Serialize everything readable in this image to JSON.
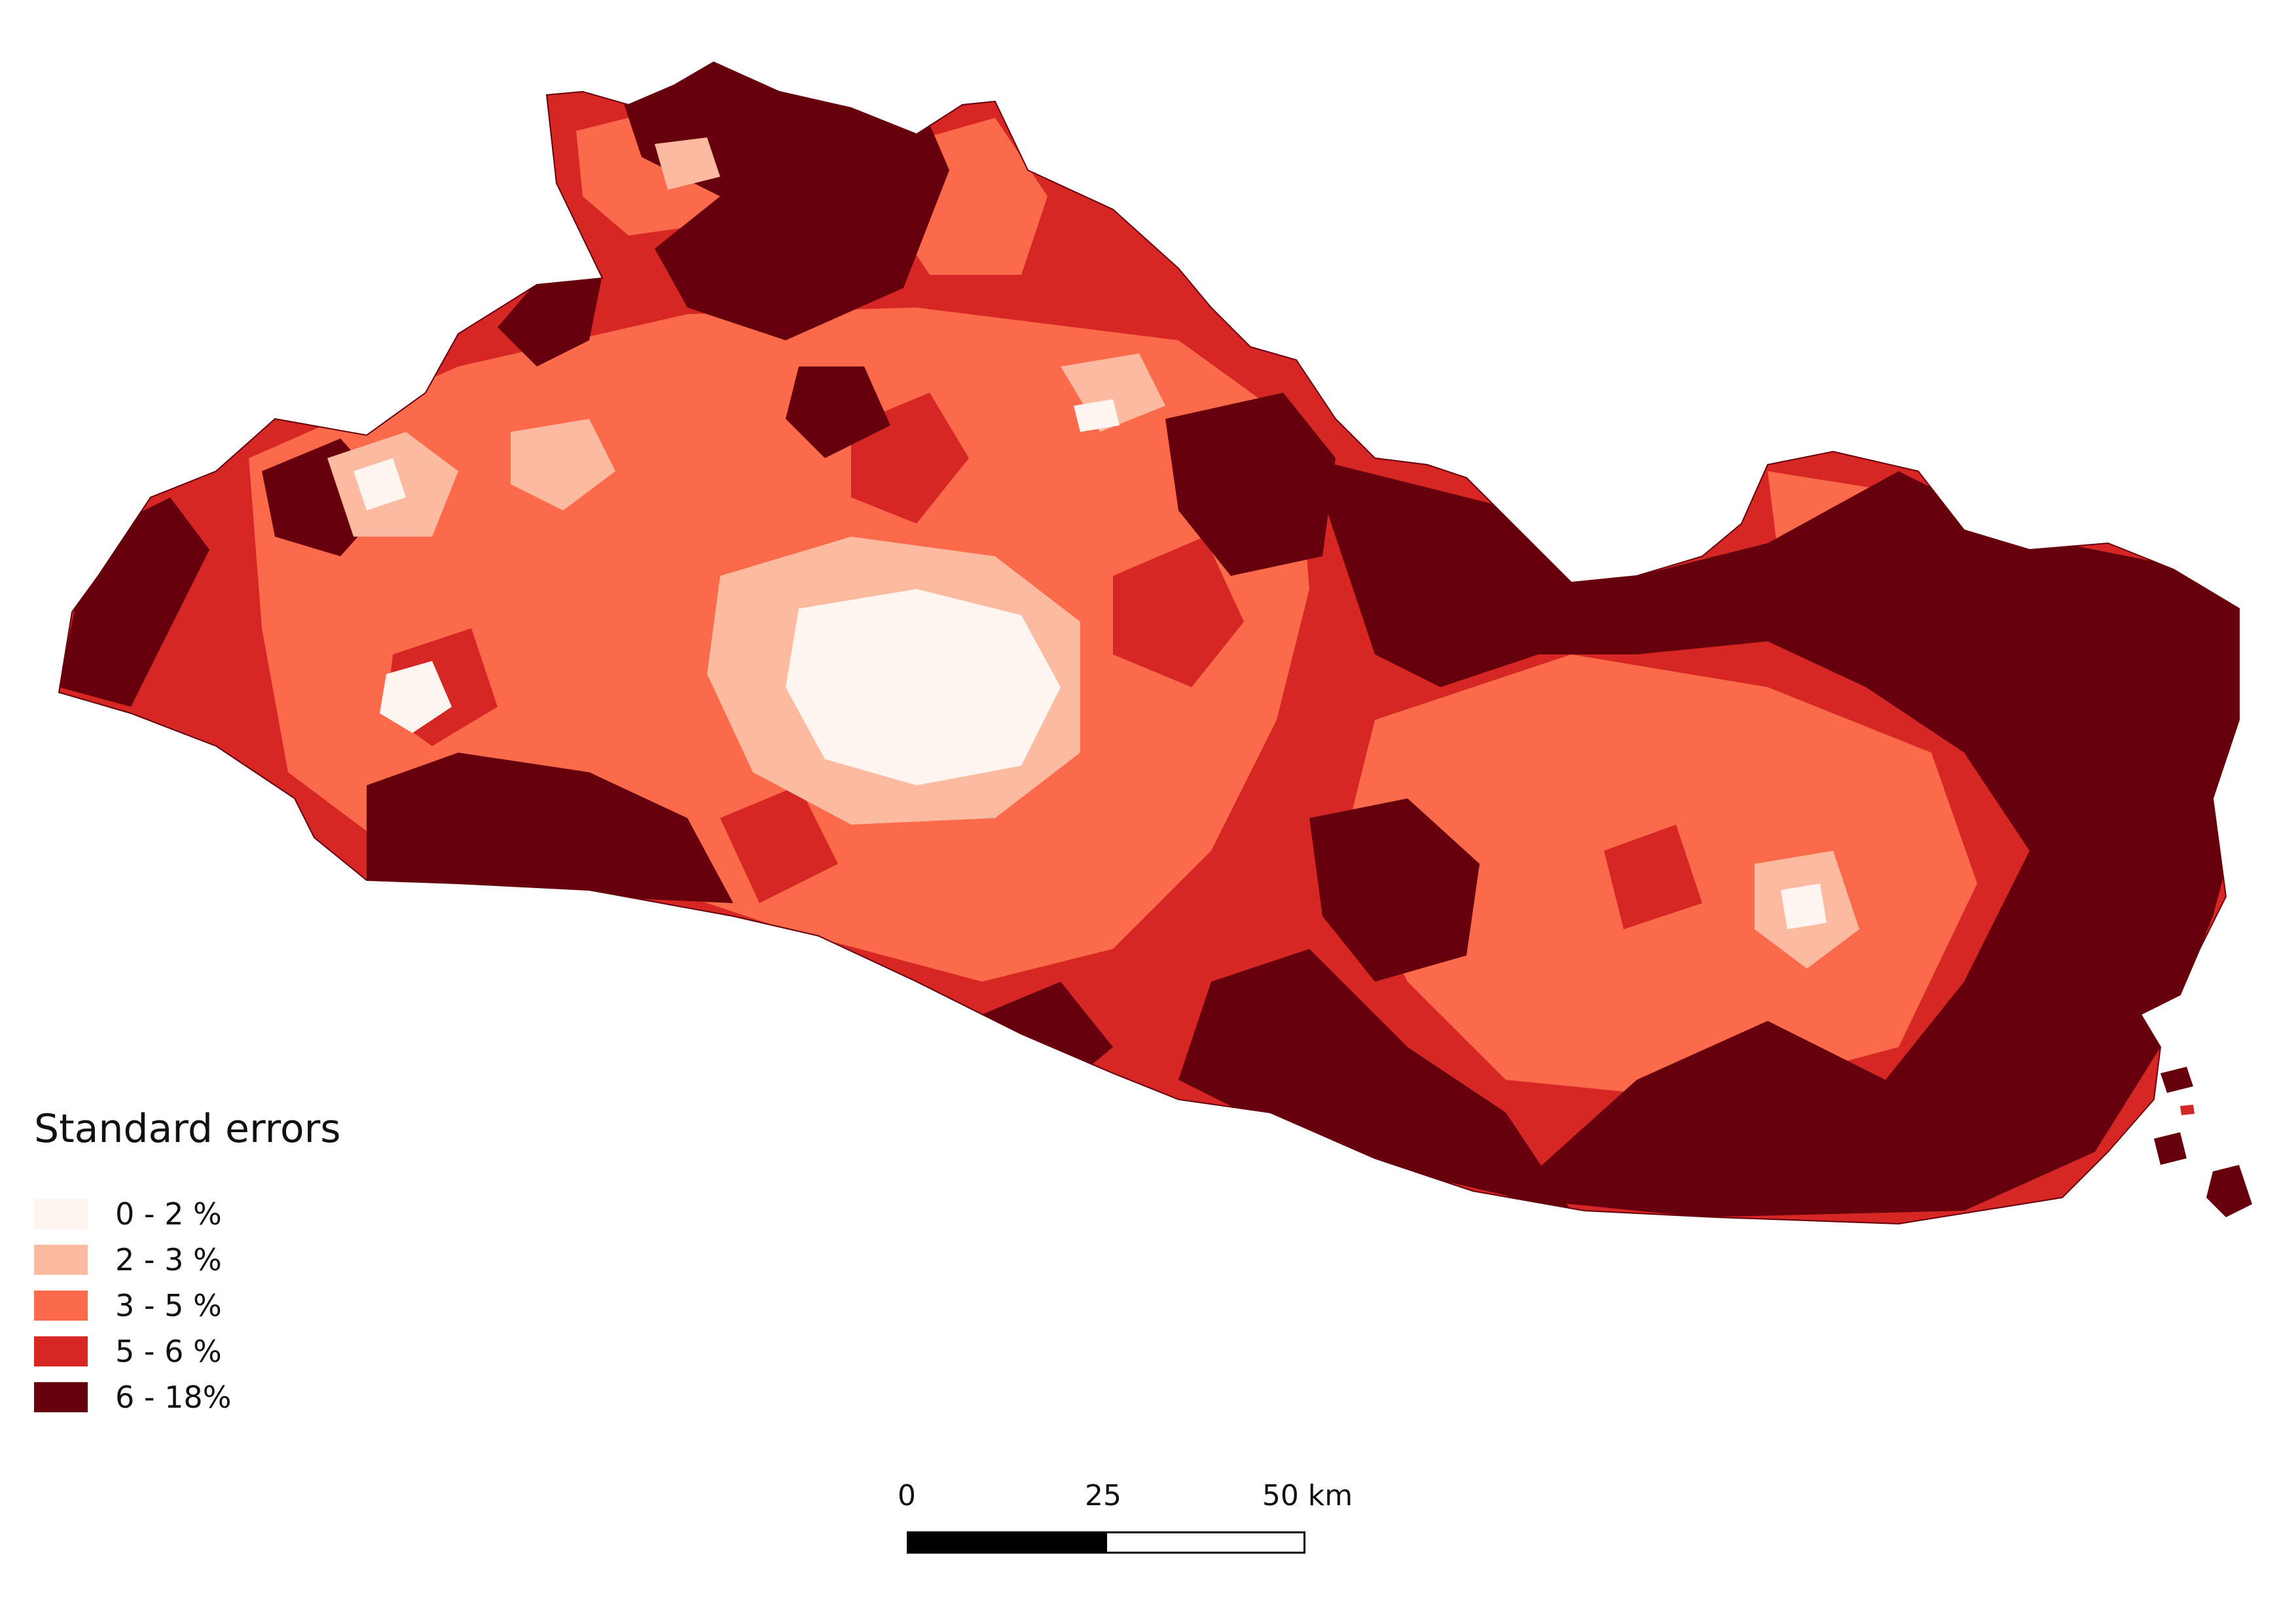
{
  "legend": {
    "title": "Standard errors",
    "classes": [
      {
        "label": "0 - 2 %",
        "color": "#fff5f0"
      },
      {
        "label": "2 - 3 %",
        "color": "#fcbba1"
      },
      {
        "label": "3 - 5 %",
        "color": "#fb6a4a"
      },
      {
        "label": "5 - 6 %",
        "color": "#d62725"
      },
      {
        "label": "6 - 18%",
        "color": "#67000d"
      }
    ]
  },
  "scale_bar": {
    "ticks": [
      "0",
      "25",
      "50 km"
    ]
  }
}
